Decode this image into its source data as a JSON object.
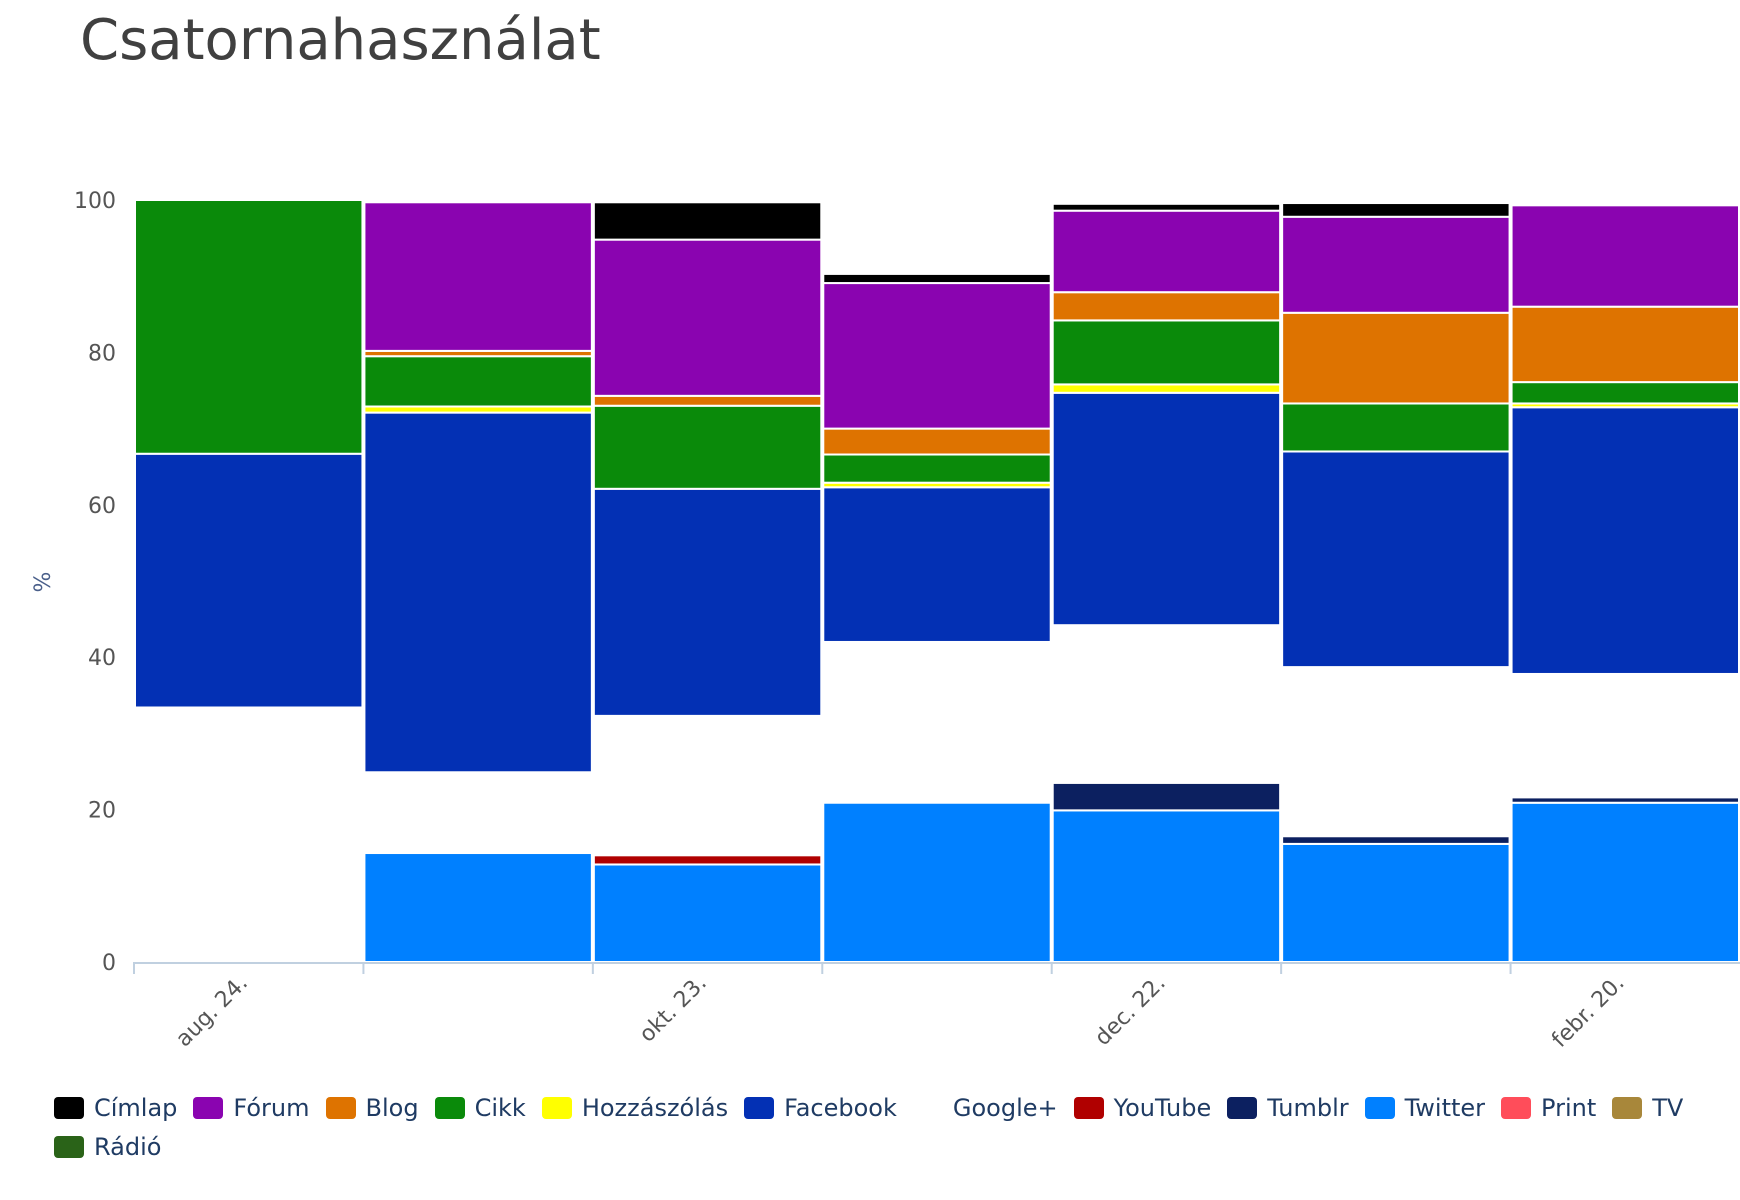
{
  "chart_data": {
    "type": "bar",
    "stacked": true,
    "title": "Csatornahasználat",
    "ylabel": "%",
    "ylim": [
      0,
      100
    ],
    "yticks": [
      0,
      20,
      40,
      60,
      80,
      100
    ],
    "categories": [
      "aug. 24.",
      "",
      "okt. 23.",
      "",
      "dec. 22.",
      "",
      "febr. 20."
    ],
    "x_tick_labels": [
      "aug. 24.",
      "okt. 23.",
      "dec. 22.",
      "febr. 20."
    ],
    "legend_position": "bottom",
    "grid": false,
    "series": [
      {
        "name": "Twitter",
        "color": "#0080ff",
        "values": [
          0,
          14.3,
          12.8,
          20.9,
          19.9,
          15.5,
          20.9
        ]
      },
      {
        "name": "Tumblr",
        "color": "#0c2060",
        "values": [
          0,
          0,
          0,
          0,
          3.6,
          1.0,
          0.7
        ]
      },
      {
        "name": "YouTube",
        "color": "#b00000",
        "values": [
          0,
          0,
          1.2,
          0,
          0,
          0,
          0
        ]
      },
      {
        "name": "Google+",
        "color": "#ffffff",
        "values": [
          33.4,
          10.6,
          18.3,
          21.1,
          20.7,
          22.2,
          16.2
        ]
      },
      {
        "name": "Facebook",
        "color": "#0330b4",
        "values": [
          33.3,
          47.2,
          29.8,
          20.3,
          30.5,
          28.3,
          35.0
        ]
      },
      {
        "name": "Hozzászólás",
        "color": "#ffff00",
        "values": [
          0,
          0.8,
          0,
          0.6,
          1.1,
          0,
          0.5
        ]
      },
      {
        "name": "Cikk",
        "color": "#0a8a0a",
        "values": [
          33.3,
          6.6,
          10.9,
          3.7,
          8.4,
          6.3,
          2.8
        ]
      },
      {
        "name": "Blog",
        "color": "#de7300",
        "values": [
          0,
          0.7,
          1.3,
          3.4,
          3.7,
          11.9,
          9.9
        ]
      },
      {
        "name": "Fórum",
        "color": "#8a04b0",
        "values": [
          0,
          19.5,
          20.5,
          19.1,
          10.7,
          12.6,
          13.3
        ]
      },
      {
        "name": "Címlap",
        "color": "#000000",
        "values": [
          0,
          0,
          4.9,
          1.2,
          0.9,
          1.8,
          0
        ]
      },
      {
        "name": "Print",
        "color": "#ff4d5a",
        "values": [
          0,
          0,
          0,
          0,
          0,
          0,
          0
        ]
      },
      {
        "name": "TV",
        "color": "#a8873a",
        "values": [
          0,
          0,
          0,
          0,
          0,
          0,
          0
        ]
      },
      {
        "name": "Rádió",
        "color": "#2a6318",
        "values": [
          0,
          0,
          0,
          0,
          0,
          0,
          0
        ]
      }
    ],
    "legend_order": [
      "Címlap",
      "Fórum",
      "Blog",
      "Cikk",
      "Hozzászólás",
      "Facebook",
      "Google+",
      "YouTube",
      "Tumblr",
      "Twitter",
      "Print",
      "TV",
      "Rádió"
    ]
  }
}
